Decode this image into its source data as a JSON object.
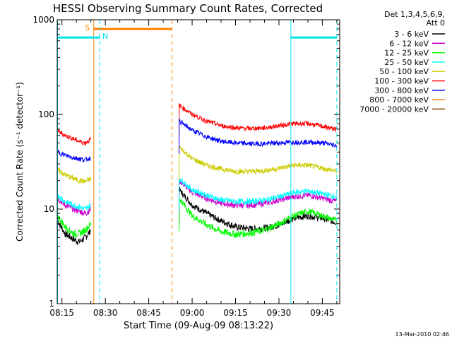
{
  "chart_data": {
    "type": "line",
    "title": "HESSI Observing Summary Count Rates, Corrected",
    "xlabel": "Start Time (09-Aug-09 08:13:22)",
    "ylabel": "Corrected Count Rate (s⁻¹ detector⁻¹)",
    "y_scale": "log",
    "ylim": [
      1,
      1000
    ],
    "xlim": [
      "08:13:22",
      "09:51:00"
    ],
    "x_ticks": [
      "08:15",
      "08:30",
      "08:45",
      "09:00",
      "09:15",
      "09:30",
      "09:45"
    ],
    "y_ticks": [
      "1",
      "10",
      "100",
      "1000"
    ],
    "legend_header": [
      "Det 1,3,4,5,6,9,",
      "Att 0"
    ],
    "legend_placement": "right",
    "footer": "13-Mar-2010 02:46",
    "markers": {
      "saa": {
        "label": "S",
        "color": "#ff8000",
        "start": "08:26",
        "end": "08:53",
        "level": 800
      },
      "night": [
        {
          "label": "N",
          "color": "#00e5ee",
          "start": "08:13:22",
          "end": "08:28",
          "level": 650
        },
        {
          "label": "",
          "color": "#00e5ee",
          "start": "09:34",
          "end": "09:50",
          "level": 650
        }
      ]
    },
    "series": [
      {
        "name": "3 - 6 keV",
        "color": "#000000",
        "segments": [
          {
            "x": [
              "08:13:30",
              "08:16",
              "08:19",
              "08:21",
              "08:23",
              "08:25"
            ],
            "y": [
              7.5,
              5.5,
              4.8,
              4.5,
              5.0,
              6.0
            ]
          },
          {
            "x": [
              "08:55:30",
              "09:00",
              "09:05",
              "09:10",
              "09:15",
              "09:20",
              "09:25",
              "09:30",
              "09:35",
              "09:40",
              "09:45",
              "09:50"
            ],
            "y": [
              16,
              11,
              9,
              7.5,
              6.5,
              6.2,
              6.3,
              6.8,
              8,
              8.5,
              8,
              7.2
            ]
          }
        ]
      },
      {
        "name": "6 - 12 keV",
        "color": "#cc00cc",
        "segments": [
          {
            "x": [
              "08:13:30",
              "08:16",
              "08:19",
              "08:21",
              "08:23",
              "08:25"
            ],
            "y": [
              13,
              11,
              10,
              9.5,
              9.0,
              10
            ]
          },
          {
            "x": [
              "08:55:30",
              "09:00",
              "09:05",
              "09:10",
              "09:15",
              "09:20",
              "09:25",
              "09:30",
              "09:35",
              "09:40",
              "09:45",
              "09:50"
            ],
            "y": [
              20,
              15,
              13,
              11.5,
              11,
              11,
              11.5,
              12.5,
              13.5,
              14,
              13,
              12
            ]
          }
        ]
      },
      {
        "name": "12 - 25 keV",
        "color": "#00ff00",
        "segments": [
          {
            "x": [
              "08:13:30",
              "08:16",
              "08:19",
              "08:21",
              "08:23",
              "08:25"
            ],
            "y": [
              8.5,
              6.5,
              5.5,
              5.5,
              6.0,
              7.0
            ]
          },
          {
            "x": [
              "08:55:30",
              "09:00",
              "09:05",
              "09:10",
              "09:15",
              "09:20",
              "09:25",
              "09:30",
              "09:35",
              "09:40",
              "09:45",
              "09:50"
            ],
            "y": [
              13,
              8.5,
              6.8,
              5.8,
              5.4,
              5.6,
              6.0,
              7.0,
              8.5,
              9.5,
              8.5,
              7.5
            ]
          }
        ]
      },
      {
        "name": "25 - 50 keV",
        "color": "#00ffff",
        "segments": [
          {
            "x": [
              "08:13:30",
              "08:16",
              "08:19",
              "08:21",
              "08:23",
              "08:25"
            ],
            "y": [
              14,
              12,
              11,
              10.5,
              10,
              11
            ]
          },
          {
            "x": [
              "08:55:30",
              "09:00",
              "09:05",
              "09:10",
              "09:15",
              "09:20",
              "09:25",
              "09:30",
              "09:35",
              "09:40",
              "09:45",
              "09:50"
            ],
            "y": [
              21,
              16,
              14,
              12.5,
              12,
              12,
              12.5,
              13.5,
              15,
              15.5,
              14.5,
              13.5
            ]
          }
        ]
      },
      {
        "name": "50 - 100 keV",
        "color": "#cccc00",
        "segments": [
          {
            "x": [
              "08:13:30",
              "08:16",
              "08:19",
              "08:21",
              "08:23",
              "08:25"
            ],
            "y": [
              26,
              23,
              21,
              20,
              19.5,
              21
            ]
          },
          {
            "x": [
              "08:55:30",
              "09:00",
              "09:05",
              "09:10",
              "09:15",
              "09:20",
              "09:25",
              "09:30",
              "09:35",
              "09:40",
              "09:45",
              "09:50"
            ],
            "y": [
              45,
              34,
              29,
              26.5,
              25,
              25,
              25.5,
              27,
              29,
              29,
              27,
              25
            ]
          }
        ]
      },
      {
        "name": "100 - 300 keV",
        "color": "#ff0000",
        "segments": [
          {
            "x": [
              "08:13:30",
              "08:16",
              "08:19",
              "08:21",
              "08:23",
              "08:25"
            ],
            "y": [
              67,
              60,
              55,
              52,
              50,
              55
            ]
          },
          {
            "x": [
              "08:55:30",
              "09:00",
              "09:05",
              "09:10",
              "09:15",
              "09:20",
              "09:25",
              "09:30",
              "09:35",
              "09:40",
              "09:45",
              "09:50"
            ],
            "y": [
              125,
              100,
              85,
              76,
              72,
              71,
              72,
              76,
              80,
              80,
              75,
              69
            ]
          }
        ]
      },
      {
        "name": "300 - 800 keV",
        "color": "#0000ff",
        "segments": [
          {
            "x": [
              "08:13:30",
              "08:16",
              "08:19",
              "08:21",
              "08:23",
              "08:25"
            ],
            "y": [
              40,
              37,
              35,
              34,
              33,
              35
            ]
          },
          {
            "x": [
              "08:55:30",
              "09:00",
              "09:05",
              "09:10",
              "09:15",
              "09:20",
              "09:25",
              "09:30",
              "09:35",
              "09:40",
              "09:45",
              "09:50"
            ],
            "y": [
              85,
              68,
              58,
              52,
              50,
              49,
              49,
              50,
              51,
              51,
              50,
              47
            ]
          }
        ]
      },
      {
        "name": "800 - 7000 keV",
        "color": "#ff8000",
        "segments": []
      },
      {
        "name": "7000 - 20000 keV",
        "color": "#8b4500",
        "segments": []
      }
    ]
  }
}
